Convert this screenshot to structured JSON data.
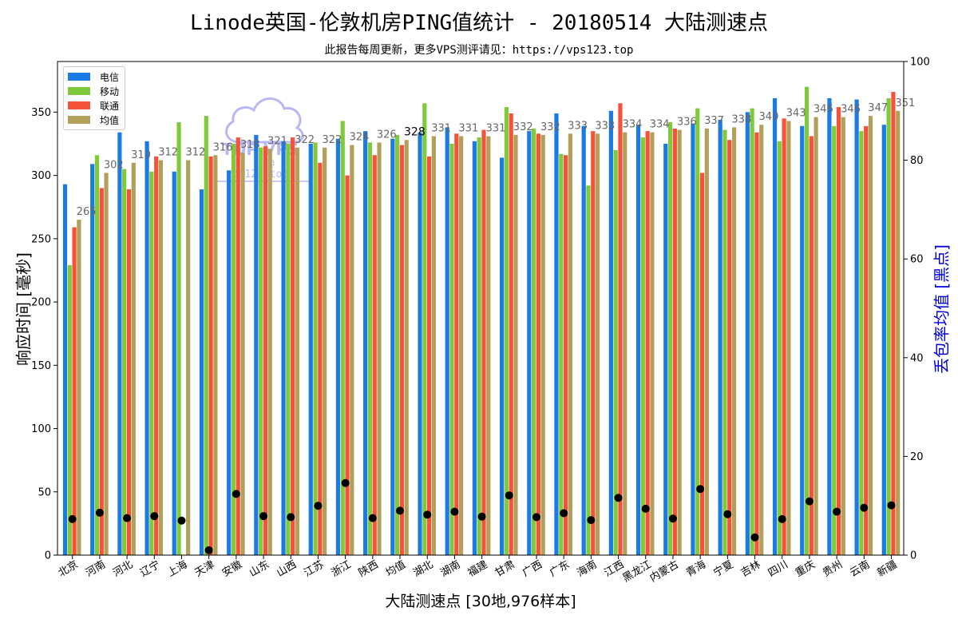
{
  "title": "Linode英国-伦敦机房PING值统计 - 20180514 大陆测速点",
  "subtitle": "此报告每周更新，更多VPS测评请见：https://vps123.top",
  "watermark": {
    "line1": "TOP VPS",
    "line2": "@",
    "line3": "vps123.top"
  },
  "chart_data": {
    "type": "bar",
    "xlabel": "大陆测速点 [30地,976样本]",
    "ylabel": "响应时间 [毫秒]",
    "y2label": "丢包率均值 [黑点]",
    "ylim": [
      0,
      390
    ],
    "y_ticks": [
      0,
      50,
      100,
      150,
      200,
      250,
      300,
      350
    ],
    "y2lim": [
      0,
      100
    ],
    "y2_ticks": [
      0,
      20,
      40,
      60,
      80,
      100
    ],
    "legend_position": "top-left",
    "categories": [
      "北京",
      "河南",
      "河北",
      "辽宁",
      "上海",
      "天津",
      "安徽",
      "山东",
      "山西",
      "江苏",
      "浙江",
      "陕西",
      "均值",
      "湖北",
      "湖南",
      "福建",
      "甘肃",
      "广西",
      "广东",
      "海南",
      "江西",
      "黑龙江",
      "内蒙古",
      "青海",
      "宁夏",
      "吉林",
      "四川",
      "重庆",
      "贵州",
      "云南",
      "新疆"
    ],
    "series": [
      {
        "name": "电信",
        "color": "#1a7ae6",
        "values": [
          293,
          309,
          334,
          327,
          303,
          289,
          304,
          332,
          327,
          325,
          329,
          335,
          329,
          334,
          338,
          327,
          314,
          335,
          349,
          339,
          351,
          340,
          325,
          341,
          344,
          350,
          361,
          339,
          361,
          360,
          340
        ]
      },
      {
        "name": "移动",
        "color": "#7fca3a",
        "values": [
          229,
          316,
          305,
          303,
          342,
          347,
          325,
          322,
          325,
          326,
          343,
          326,
          332,
          357,
          325,
          330,
          354,
          337,
          317,
          292,
          320,
          330,
          342,
          353,
          336,
          353,
          327,
          370,
          339,
          335,
          361
        ]
      },
      {
        "name": "联通",
        "color": "#f4533a",
        "values": [
          259,
          290,
          289,
          315,
          0,
          315,
          330,
          323,
          330,
          310,
          300,
          316,
          324,
          315,
          333,
          336,
          349,
          333,
          316,
          335,
          357,
          335,
          337,
          302,
          328,
          334,
          345,
          331,
          354,
          339,
          366
        ]
      },
      {
        "name": "均值",
        "color": "#b2a05a",
        "values": [
          265,
          302,
          310,
          312,
          312,
          316,
          318,
          321,
          322,
          322,
          324,
          326,
          328,
          331,
          331,
          331,
          332,
          332,
          333,
          333,
          334,
          334,
          336,
          337,
          338,
          340,
          343,
          346,
          346,
          347,
          351
        ]
      }
    ],
    "avg_labels": [
      "265",
      "302",
      "310",
      "312",
      "312",
      "316",
      "318",
      "321",
      "322",
      "322",
      "324",
      "326",
      "328",
      "331",
      "331",
      "331",
      "332",
      "332",
      "333",
      "333",
      "334",
      "334",
      "336",
      "337",
      "338",
      "340",
      "343",
      "346",
      "346",
      "347",
      "351"
    ],
    "loss_series": {
      "name": "丢包率均值",
      "color": "#000000",
      "values": [
        7.3,
        8.6,
        7.5,
        7.9,
        7.0,
        1.0,
        12.4,
        7.9,
        7.7,
        10.0,
        14.6,
        7.5,
        9.0,
        8.2,
        8.8,
        7.8,
        12.1,
        7.7,
        8.5,
        7.1,
        11.6,
        9.4,
        7.4,
        13.4,
        8.3,
        3.6,
        7.3,
        10.9,
        8.8,
        9.6,
        10.1
      ]
    }
  }
}
